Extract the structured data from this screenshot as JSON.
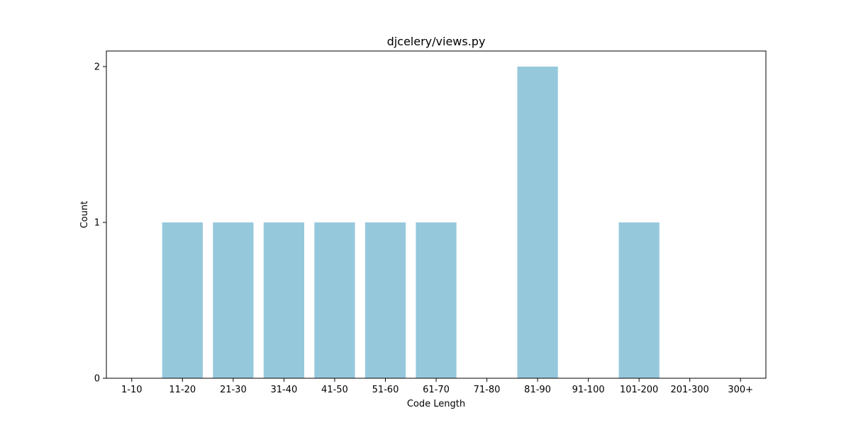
{
  "chart_data": {
    "type": "bar",
    "title": "djcelery/views.py",
    "xlabel": "Code Length",
    "ylabel": "Count",
    "categories": [
      "1-10",
      "11-20",
      "21-30",
      "31-40",
      "41-50",
      "51-60",
      "61-70",
      "71-80",
      "81-90",
      "91-100",
      "101-200",
      "201-300",
      "300+"
    ],
    "values": [
      0,
      1,
      1,
      1,
      1,
      1,
      1,
      0,
      2,
      0,
      1,
      0,
      0
    ],
    "ylim": [
      0,
      2.1
    ],
    "yticks": [
      0,
      1,
      2
    ],
    "grid": false,
    "bar_color": "#96c8dc"
  }
}
